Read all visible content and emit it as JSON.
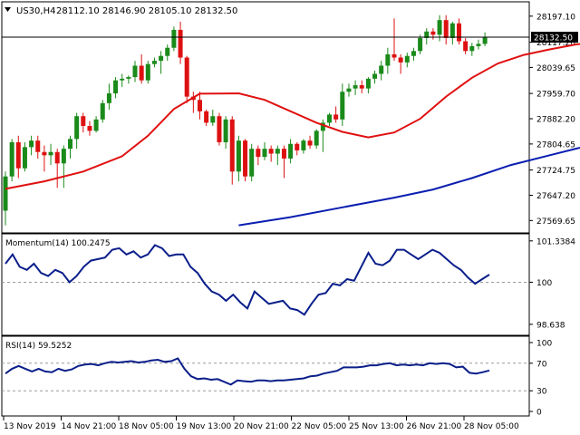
{
  "header": {
    "symbol": "US30,H4",
    "ohlc": "28112.10 28146.90 28105.10 28132.50"
  },
  "colors": {
    "bull": "#1a8a1a",
    "bear": "#dd1111",
    "ma_fast": "#e01010",
    "ma_slow": "#0a1eb0",
    "osc": "#0a1e8a",
    "grid": "#9a9a9a",
    "text": "#000000"
  },
  "chart_data": [
    {
      "type": "candlestick",
      "title": "",
      "current_price_label": "28132.50",
      "current_price": 28132.5,
      "ylim": [
        27540,
        28230
      ],
      "y_ticks": [
        "28197.10",
        "28117.20",
        "28039.65",
        "27959.70",
        "27882.20",
        "27804.65",
        "27724.75",
        "27647.20",
        "27569.65"
      ],
      "y_tick_values": [
        28197.1,
        28117.2,
        28039.65,
        27959.7,
        27882.2,
        27804.65,
        27724.75,
        27647.2,
        27569.65
      ],
      "candles": [
        [
          27600,
          27720,
          27555,
          27705
        ],
        [
          27705,
          27820,
          27690,
          27810
        ],
        [
          27810,
          27830,
          27700,
          27730
        ],
        [
          27730,
          27810,
          27720,
          27795
        ],
        [
          27795,
          27830,
          27770,
          27815
        ],
        [
          27815,
          27830,
          27760,
          27780
        ],
        [
          27780,
          27800,
          27720,
          27770
        ],
        [
          27770,
          27805,
          27740,
          27780
        ],
        [
          27780,
          27790,
          27670,
          27745
        ],
        [
          27745,
          27800,
          27670,
          27790
        ],
        [
          27790,
          27830,
          27760,
          27820
        ],
        [
          27820,
          27900,
          27790,
          27890
        ],
        [
          27890,
          27900,
          27840,
          27860
        ],
        [
          27860,
          27875,
          27830,
          27845
        ],
        [
          27845,
          27890,
          27840,
          27880
        ],
        [
          27880,
          27940,
          27870,
          27930
        ],
        [
          27930,
          27990,
          27910,
          27960
        ],
        [
          27960,
          28010,
          27945,
          28000
        ],
        [
          28000,
          28020,
          27980,
          28005
        ],
        [
          28005,
          28015,
          27990,
          28010
        ],
        [
          28010,
          28060,
          27995,
          28045
        ],
        [
          28045,
          28080,
          27990,
          28000
        ],
        [
          28000,
          28060,
          27990,
          28050
        ],
        [
          28050,
          28070,
          28040,
          28060
        ],
        [
          28060,
          28090,
          28020,
          28075
        ],
        [
          28075,
          28110,
          28060,
          28100
        ],
        [
          28100,
          28165,
          28090,
          28155
        ],
        [
          28155,
          28180,
          28050,
          28070
        ],
        [
          28070,
          28075,
          27930,
          27950
        ],
        [
          27950,
          27965,
          27900,
          27940
        ],
        [
          27940,
          27965,
          27880,
          27905
        ],
        [
          27905,
          27910,
          27860,
          27870
        ],
        [
          27870,
          27910,
          27860,
          27890
        ],
        [
          27890,
          27900,
          27800,
          27810
        ],
        [
          27810,
          27890,
          27790,
          27880
        ],
        [
          27880,
          27890,
          27680,
          27720
        ],
        [
          27720,
          27830,
          27690,
          27815
        ],
        [
          27815,
          27820,
          27690,
          27705
        ],
        [
          27705,
          27805,
          27690,
          27790
        ],
        [
          27790,
          27800,
          27740,
          27765
        ],
        [
          27765,
          27810,
          27755,
          27790
        ],
        [
          27790,
          27800,
          27750,
          27775
        ],
        [
          27775,
          27800,
          27740,
          27790
        ],
        [
          27790,
          27800,
          27700,
          27760
        ],
        [
          27760,
          27820,
          27745,
          27805
        ],
        [
          27805,
          27810,
          27770,
          27785
        ],
        [
          27785,
          27820,
          27775,
          27815
        ],
        [
          27815,
          27830,
          27790,
          27800
        ],
        [
          27800,
          27850,
          27790,
          27845
        ],
        [
          27845,
          27880,
          27780,
          27870
        ],
        [
          27870,
          27900,
          27860,
          27895
        ],
        [
          27895,
          27920,
          27870,
          27880
        ],
        [
          27880,
          27990,
          27860,
          27965
        ],
        [
          27965,
          27990,
          27950,
          27975
        ],
        [
          27975,
          28000,
          27955,
          27985
        ],
        [
          27985,
          28000,
          27960,
          27975
        ],
        [
          27975,
          28010,
          27960,
          28005
        ],
        [
          28005,
          28030,
          27990,
          28020
        ],
        [
          28020,
          28060,
          28000,
          28045
        ],
        [
          28045,
          28100,
          28020,
          28080
        ],
        [
          28080,
          28190,
          28060,
          28070
        ],
        [
          28070,
          28080,
          28020,
          28055
        ],
        [
          28055,
          28085,
          28040,
          28075
        ],
        [
          28075,
          28100,
          28060,
          28090
        ],
        [
          28090,
          28140,
          28080,
          28130
        ],
        [
          28130,
          28160,
          28110,
          28150
        ],
        [
          28150,
          28160,
          28125,
          28140
        ],
        [
          28140,
          28200,
          28120,
          28185
        ],
        [
          28185,
          28200,
          28110,
          28130
        ],
        [
          28130,
          28180,
          28110,
          28175
        ],
        [
          28175,
          28190,
          28110,
          28120
        ],
        [
          28120,
          28130,
          28080,
          28090
        ],
        [
          28090,
          28115,
          28075,
          28105
        ],
        [
          28105,
          28125,
          28095,
          28112
        ],
        [
          28112,
          28147,
          28105,
          28132
        ]
      ],
      "ma_fast": [
        [
          0,
          27667
        ],
        [
          6,
          27690
        ],
        [
          12,
          27720
        ],
        [
          18,
          27767
        ],
        [
          22,
          27830
        ],
        [
          26,
          27912
        ],
        [
          30,
          27959
        ],
        [
          36,
          27960
        ],
        [
          40,
          27940
        ],
        [
          44,
          27905
        ],
        [
          48,
          27870
        ],
        [
          52,
          27842
        ],
        [
          56,
          27825
        ],
        [
          60,
          27840
        ],
        [
          64,
          27882
        ],
        [
          68,
          27950
        ],
        [
          72,
          28008
        ],
        [
          76,
          28052
        ],
        [
          80,
          28078
        ],
        [
          84,
          28095
        ],
        [
          88,
          28110
        ],
        [
          90,
          28115
        ]
      ],
      "ma_slow": [
        [
          36,
          27555
        ],
        [
          44,
          27580
        ],
        [
          52,
          27610
        ],
        [
          60,
          27640
        ],
        [
          66,
          27665
        ],
        [
          72,
          27700
        ],
        [
          78,
          27740
        ],
        [
          84,
          27770
        ],
        [
          90,
          27800
        ],
        [
          96,
          27820
        ],
        [
          104,
          27840
        ]
      ],
      "x_labels": [
        "13 Nov 2019",
        "14 Nov 21:00",
        "18 Nov 05:00",
        "19 Nov 13:00",
        "20 Nov 21:00",
        "22 Nov 05:00",
        "25 Nov 13:00",
        "26 Nov 21:00",
        "28 Nov 05:00"
      ]
    },
    {
      "type": "line",
      "title": "Momentum(14) 100.2475",
      "ylim": [
        98.4,
        101.45
      ],
      "y_ticks": [
        "101.3384",
        "100",
        "98.638"
      ],
      "y_tick_values": [
        101.3384,
        100,
        98.638
      ],
      "values": [
        100.6,
        100.9,
        100.5,
        100.4,
        100.6,
        100.3,
        100.2,
        100.4,
        100.3,
        100.0,
        100.2,
        100.5,
        100.7,
        100.75,
        100.8,
        101.05,
        101.1,
        100.9,
        101.0,
        100.8,
        100.9,
        101.2,
        101.1,
        100.85,
        100.9,
        100.9,
        100.5,
        100.3,
        99.95,
        99.7,
        99.6,
        99.4,
        99.6,
        99.35,
        99.15,
        99.7,
        99.5,
        99.3,
        99.35,
        99.4,
        99.15,
        99.1,
        98.95,
        99.3,
        99.6,
        99.65,
        99.95,
        99.9,
        100.1,
        100.05,
        100.5,
        100.95,
        100.6,
        100.55,
        100.7,
        101.05,
        101.05,
        100.9,
        100.75,
        100.9,
        101.05,
        100.95,
        100.75,
        100.55,
        100.4,
        100.15,
        99.95,
        100.1,
        100.2475
      ]
    },
    {
      "type": "line",
      "title": "RSI(14) 59.5252",
      "ylim": [
        0,
        100
      ],
      "y_ticks": [
        "100",
        "70",
        "30",
        "0"
      ],
      "y_tick_values": [
        100,
        70,
        30,
        0
      ],
      "levels": [
        70,
        30
      ],
      "values": [
        55,
        62,
        66,
        62,
        58,
        62,
        58,
        57,
        62,
        59,
        61,
        66,
        68,
        69,
        67,
        70,
        72,
        71,
        72,
        73,
        71,
        72,
        74,
        75,
        72,
        73,
        77,
        62,
        51,
        47,
        48,
        46,
        47,
        43,
        39,
        45,
        44,
        43,
        45,
        45,
        44,
        45,
        45,
        46,
        47,
        48,
        51,
        52,
        55,
        57,
        59,
        64,
        64,
        64,
        65,
        67,
        67,
        69,
        70,
        67,
        68,
        67,
        68,
        67,
        70,
        69,
        70,
        69,
        64,
        65,
        56,
        55,
        57,
        59.5252
      ]
    }
  ]
}
